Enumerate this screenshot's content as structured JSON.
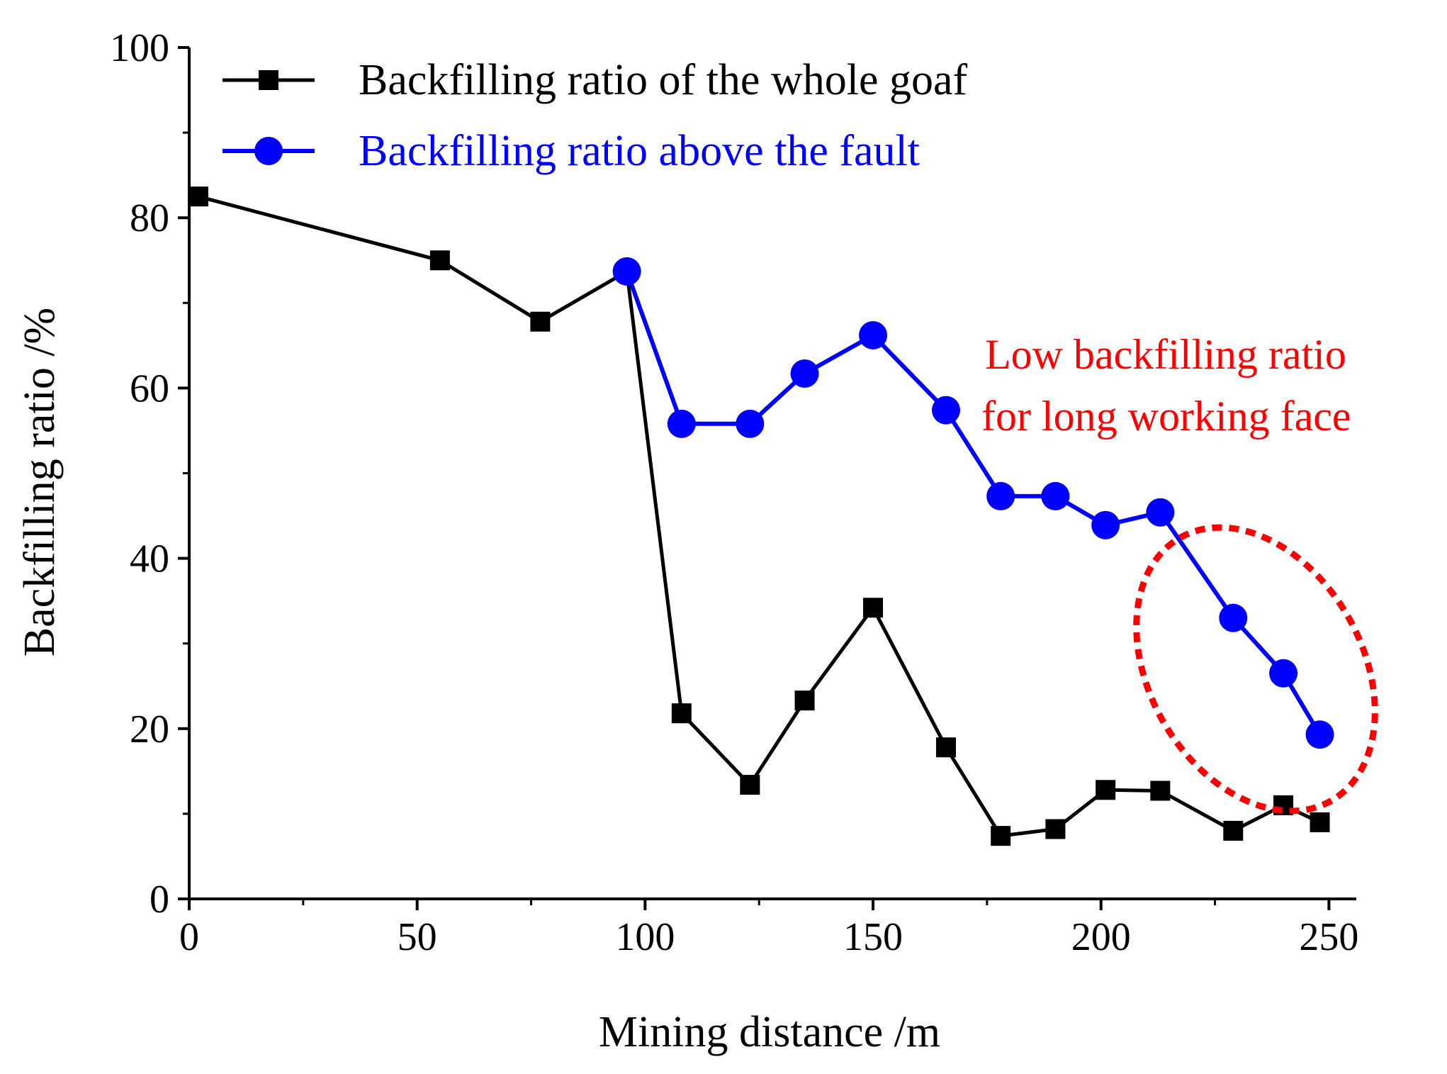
{
  "chart_data": {
    "type": "line",
    "title": "",
    "xlabel": "Mining distance /m",
    "ylabel": "Backfilling ratio /%",
    "xlim": [
      0,
      256
    ],
    "ylim": [
      0,
      100
    ],
    "x_ticks": [
      0,
      50,
      100,
      150,
      200,
      250
    ],
    "y_ticks": [
      0,
      20,
      40,
      60,
      80,
      100
    ],
    "x_tick_labels": [
      "0",
      "50",
      "100",
      "150",
      "200",
      "250"
    ],
    "y_tick_labels": [
      "0",
      "20",
      "40",
      "60",
      "80",
      "100"
    ],
    "grid": false,
    "legend_position": "top-left",
    "series": [
      {
        "name": "Backfilling ratio of the whole goaf",
        "color": "#000000",
        "marker": "square",
        "x": [
          2,
          55,
          77,
          96,
          108,
          123,
          135,
          150,
          166,
          178,
          190,
          201,
          213,
          229,
          240,
          248
        ],
        "y": [
          82.5,
          75,
          67.8,
          73.7,
          21.8,
          13.4,
          23.3,
          34.2,
          17.8,
          7.4,
          8.2,
          12.8,
          12.7,
          8,
          11,
          9
        ]
      },
      {
        "name": "Backfilling ratio above the fault",
        "color": "#0000ff",
        "marker": "circle",
        "x": [
          96,
          108,
          123,
          135,
          150,
          166,
          178,
          190,
          201,
          213,
          229,
          240,
          248
        ],
        "y": [
          73.7,
          55.8,
          55.8,
          61.7,
          66.2,
          57.4,
          47.3,
          47.3,
          43.9,
          45.4,
          33,
          26.5,
          19.3
        ]
      }
    ],
    "annotations": [
      {
        "text_line1": "Low backfilling ratio",
        "text_line2": "for long working face",
        "color": "#ff0000"
      }
    ]
  }
}
